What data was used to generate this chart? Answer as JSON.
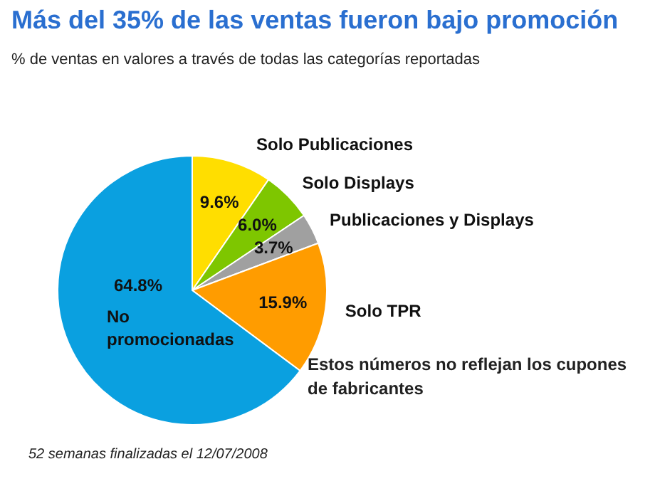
{
  "chart_data": {
    "type": "pie",
    "title": "Más del 35% de las ventas fueron bajo promoción",
    "subtitle": "% de ventas en valores a través de todas las categorías reportadas",
    "categories": [
      "Solo Publicaciones",
      "Solo Displays",
      "Publicaciones y Displays",
      "Solo TPR",
      "No promocionadas"
    ],
    "values": [
      9.6,
      6.0,
      3.7,
      15.9,
      64.8
    ],
    "value_labels": [
      "9.6%",
      "6.0%",
      "3.7%",
      "15.9%",
      "64.8%"
    ],
    "colors": [
      "#ffde00",
      "#7ec600",
      "#a0a0a0",
      "#ff9c00",
      "#0aa0e0"
    ],
    "annotations": [
      "Estos números no reflejan los cupones de fabricantes",
      "52 semanas finalizadas el 12/07/2008"
    ],
    "legend": false
  }
}
